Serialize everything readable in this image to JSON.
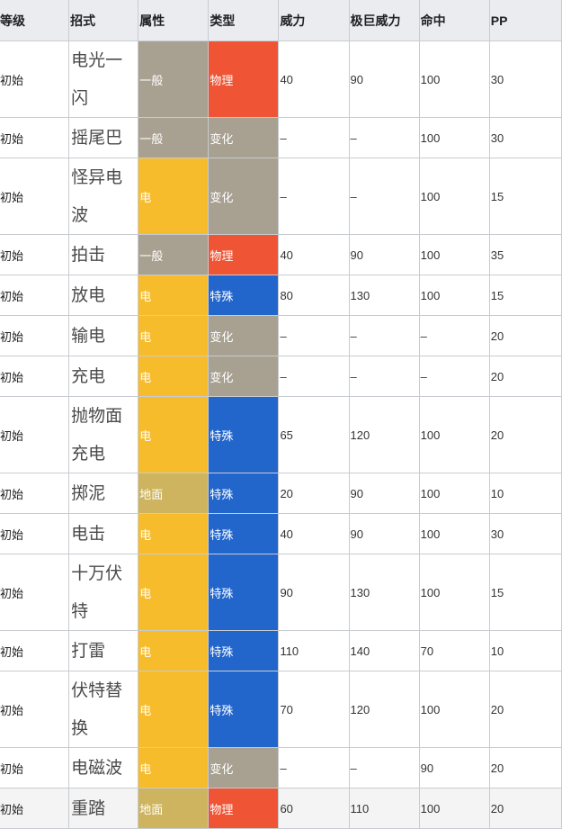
{
  "colors": {
    "header_bg": "#eaecf0",
    "type_normal": "#a8a090",
    "type_electric": "#f7bc2c",
    "type_ground": "#ceb45e",
    "cat_physical": "#ef5434",
    "cat_special": "#2266cc",
    "cat_status": "#a8a090"
  },
  "table": {
    "headers": {
      "level": "等级",
      "move": "招式",
      "type": "属性",
      "category": "类型",
      "power": "威力",
      "max_power": "极巨威力",
      "accuracy": "命中",
      "pp": "PP"
    },
    "rows": [
      {
        "level": "初始",
        "move": "电光一闪",
        "type": "一般",
        "category": "物理",
        "power": "40",
        "max_power": "90",
        "accuracy": "100",
        "pp": "30"
      },
      {
        "level": "初始",
        "move": "摇尾巴",
        "type": "一般",
        "category": "变化",
        "power": "–",
        "max_power": "–",
        "accuracy": "100",
        "pp": "30"
      },
      {
        "level": "初始",
        "move": "怪异电波",
        "type": "电",
        "category": "变化",
        "power": "–",
        "max_power": "–",
        "accuracy": "100",
        "pp": "15"
      },
      {
        "level": "初始",
        "move": "拍击",
        "type": "一般",
        "category": "物理",
        "power": "40",
        "max_power": "90",
        "accuracy": "100",
        "pp": "35"
      },
      {
        "level": "初始",
        "move": "放电",
        "type": "电",
        "category": "特殊",
        "power": "80",
        "max_power": "130",
        "accuracy": "100",
        "pp": "15"
      },
      {
        "level": "初始",
        "move": "输电",
        "type": "电",
        "category": "变化",
        "power": "–",
        "max_power": "–",
        "accuracy": "–",
        "pp": "20"
      },
      {
        "level": "初始",
        "move": "充电",
        "type": "电",
        "category": "变化",
        "power": "–",
        "max_power": "–",
        "accuracy": "–",
        "pp": "20"
      },
      {
        "level": "初始",
        "move": "抛物面充电",
        "type": "电",
        "category": "特殊",
        "power": "65",
        "max_power": "120",
        "accuracy": "100",
        "pp": "20"
      },
      {
        "level": "初始",
        "move": "掷泥",
        "type": "地面",
        "category": "特殊",
        "power": "20",
        "max_power": "90",
        "accuracy": "100",
        "pp": "10"
      },
      {
        "level": "初始",
        "move": "电击",
        "type": "电",
        "category": "特殊",
        "power": "40",
        "max_power": "90",
        "accuracy": "100",
        "pp": "30"
      },
      {
        "level": "初始",
        "move": "十万伏特",
        "type": "电",
        "category": "特殊",
        "power": "90",
        "max_power": "130",
        "accuracy": "100",
        "pp": "15"
      },
      {
        "level": "初始",
        "move": "打雷",
        "type": "电",
        "category": "特殊",
        "power": "110",
        "max_power": "140",
        "accuracy": "70",
        "pp": "10"
      },
      {
        "level": "初始",
        "move": "伏特替换",
        "type": "电",
        "category": "特殊",
        "power": "70",
        "max_power": "120",
        "accuracy": "100",
        "pp": "20"
      },
      {
        "level": "初始",
        "move": "电磁波",
        "type": "电",
        "category": "变化",
        "power": "–",
        "max_power": "–",
        "accuracy": "90",
        "pp": "20"
      },
      {
        "level": "初始",
        "move": "重踏",
        "type": "地面",
        "category": "物理",
        "power": "60",
        "max_power": "110",
        "accuracy": "100",
        "pp": "20"
      }
    ]
  }
}
